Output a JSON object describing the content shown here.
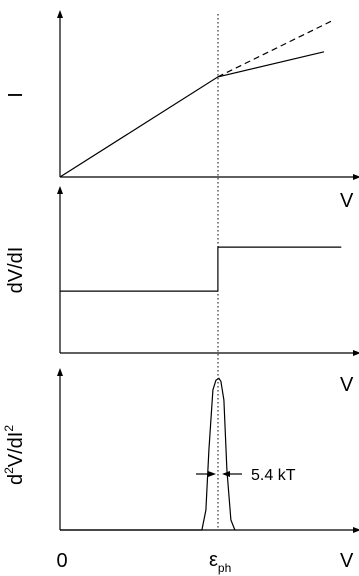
{
  "chart_data": [
    {
      "type": "line",
      "ylabel": "I",
      "xlabel": "V",
      "xlim": [
        0,
        1
      ],
      "ylim": [
        0,
        1
      ],
      "series": [
        {
          "style": "solid",
          "x": [
            0,
            0.55,
            0.92
          ],
          "y": [
            0,
            0.64,
            0.8
          ]
        },
        {
          "style": "dashed",
          "x": [
            0.55,
            0.95
          ],
          "y": [
            0.64,
            1.0
          ]
        }
      ]
    },
    {
      "type": "line",
      "ylabel": "dV/dI",
      "xlabel": "V",
      "xlim": [
        0,
        1
      ],
      "ylim": [
        0,
        1
      ],
      "series": [
        {
          "style": "step",
          "x": [
            0,
            0.55,
            0.55,
            0.98
          ],
          "y": [
            0.38,
            0.38,
            0.65,
            0.65
          ]
        }
      ]
    },
    {
      "type": "line",
      "ylabel": "d²V/dI²",
      "xlabel": "V",
      "xticks": [
        "0",
        "ε_ph"
      ],
      "xlim": [
        0,
        1
      ],
      "ylim": [
        0,
        1
      ],
      "series": [
        {
          "style": "peak",
          "center": 0.55,
          "height": 0.96,
          "fwhm_label": "5.4 kT"
        }
      ]
    }
  ],
  "labels": {
    "panel1_y": "I",
    "panel1_x": "V",
    "panel2_y": "dV/dI",
    "panel2_x": "V",
    "panel3_y_main": "d",
    "panel3_y_sup1": "2",
    "panel3_y_mid": "V/dI",
    "panel3_y_sup2": "2",
    "panel3_x": "V",
    "tick_zero": "0",
    "tick_eps_main": "ε",
    "tick_eps_sub": "ph",
    "width_label": "5.4 kT"
  }
}
